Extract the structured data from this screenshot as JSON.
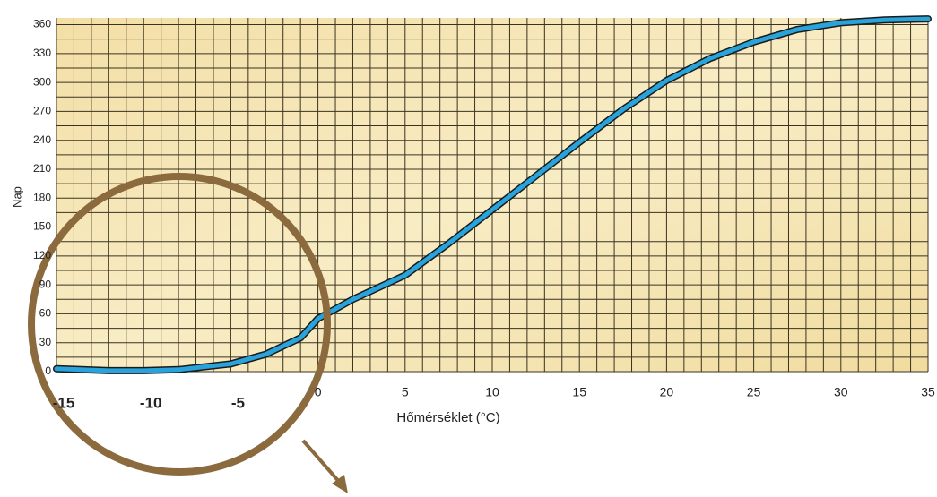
{
  "chart_data": {
    "type": "line",
    "x_label": "Hőmérséklet (°C)",
    "y_label": "Nap",
    "x": [
      -15,
      -12,
      -10,
      -8,
      -5,
      -3,
      -1,
      0,
      2,
      5,
      7.5,
      10,
      12.5,
      15,
      17.5,
      20,
      22.5,
      25,
      27.5,
      30,
      32.5,
      35
    ],
    "series": [
      {
        "color": "#29a3db",
        "values": [
          3,
          1,
          1,
          2,
          8,
          18,
          35,
          55,
          75,
          100,
          133,
          168,
          203,
          238,
          272,
          302,
          325,
          342,
          355,
          362,
          365,
          366
        ]
      }
    ],
    "xlim": [
      -15,
      35
    ],
    "xticks": [
      -15,
      -10,
      -5,
      0,
      5,
      10,
      15,
      20,
      25,
      30,
      35
    ],
    "ylim": [
      0,
      367
    ],
    "yticks": [
      0,
      30,
      60,
      90,
      120,
      150,
      180,
      210,
      240,
      270,
      300,
      330,
      360
    ],
    "grid": true
  }
}
